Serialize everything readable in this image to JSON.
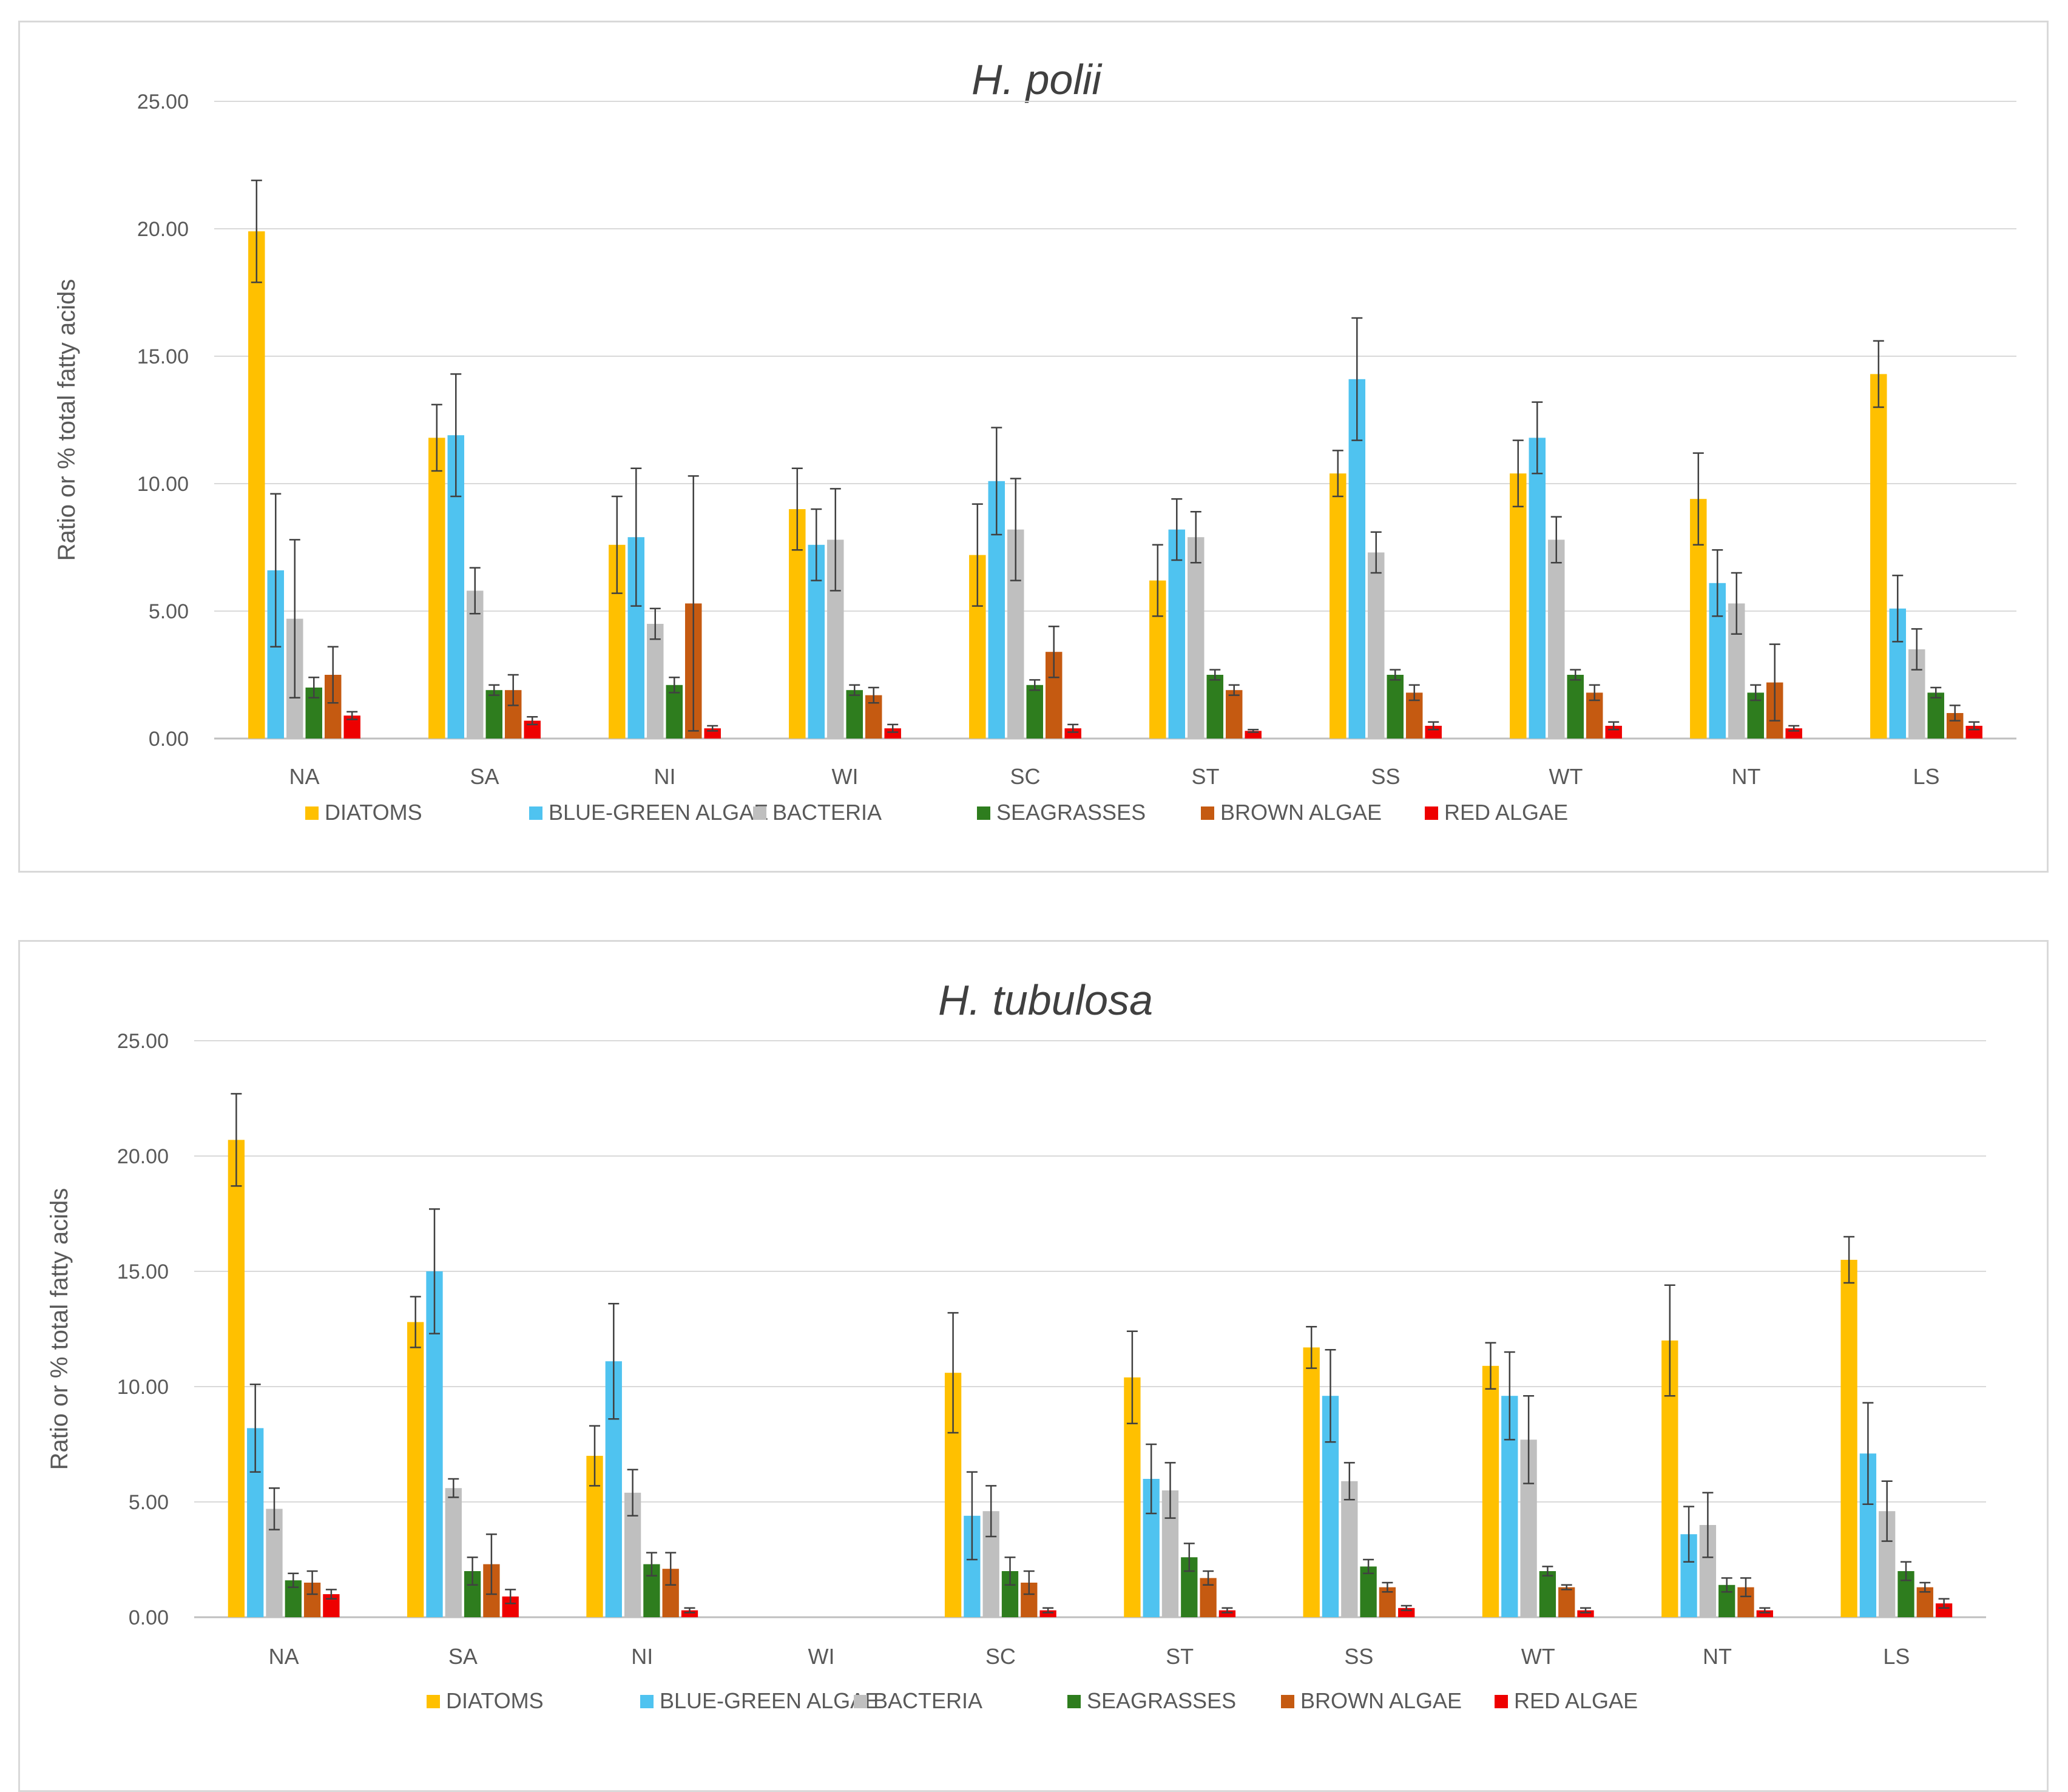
{
  "chart_data": [
    {
      "type": "bar",
      "title": "H. polii",
      "ylabel": "Ratio or % total fatty acids",
      "xlabel": "",
      "ylim": [
        0,
        25
      ],
      "yticks": [
        "0.00",
        "5.00",
        "10.00",
        "15.00",
        "20.00",
        "25.00"
      ],
      "grid": true,
      "legend_position": "bottom",
      "categories": [
        "NA",
        "SA",
        "NI",
        "WI",
        "SC",
        "ST",
        "SS",
        "WT",
        "NT",
        "LS"
      ],
      "series": [
        {
          "name": "DIATOMS",
          "color": "#FFC000",
          "values": [
            19.9,
            11.8,
            7.6,
            9.0,
            7.2,
            6.2,
            10.4,
            10.4,
            9.4,
            14.3
          ],
          "errors": [
            2.0,
            1.3,
            1.9,
            1.6,
            2.0,
            1.4,
            0.9,
            1.3,
            1.8,
            1.3
          ]
        },
        {
          "name": "BLUE-GREEN ALGAE",
          "color": "#4FC3F0",
          "values": [
            6.6,
            11.9,
            7.9,
            7.6,
            10.1,
            8.2,
            14.1,
            11.8,
            6.1,
            5.1
          ],
          "errors": [
            3.0,
            2.4,
            2.7,
            1.4,
            2.1,
            1.2,
            2.4,
            1.4,
            1.3,
            1.3
          ]
        },
        {
          "name": "BACTERIA",
          "color": "#BFBFBF",
          "values": [
            4.7,
            5.8,
            4.5,
            7.8,
            8.2,
            7.9,
            7.3,
            7.8,
            5.3,
            3.5
          ],
          "errors": [
            3.1,
            0.9,
            0.6,
            2.0,
            2.0,
            1.0,
            0.8,
            0.9,
            1.2,
            0.8
          ]
        },
        {
          "name": "SEAGRASSES",
          "color": "#2E7D1E",
          "values": [
            2.0,
            1.9,
            2.1,
            1.9,
            2.1,
            2.5,
            2.5,
            2.5,
            1.8,
            1.8
          ],
          "errors": [
            0.4,
            0.2,
            0.3,
            0.2,
            0.2,
            0.2,
            0.2,
            0.2,
            0.3,
            0.2
          ]
        },
        {
          "name": "BROWN ALGAE",
          "color": "#C55A11",
          "values": [
            2.5,
            1.9,
            5.3,
            1.7,
            3.4,
            1.9,
            1.8,
            1.8,
            2.2,
            1.0
          ],
          "errors": [
            1.1,
            0.6,
            5.0,
            0.3,
            1.0,
            0.2,
            0.3,
            0.3,
            1.5,
            0.3
          ]
        },
        {
          "name": "RED ALGAE",
          "color": "#EE0000",
          "values": [
            0.9,
            0.7,
            0.4,
            0.4,
            0.4,
            0.3,
            0.5,
            0.5,
            0.4,
            0.5
          ],
          "errors": [
            0.15,
            0.15,
            0.1,
            0.15,
            0.15,
            0.05,
            0.15,
            0.15,
            0.1,
            0.15
          ]
        }
      ]
    },
    {
      "type": "bar",
      "title": "H. tubulosa",
      "ylabel": "Ratio or % total fatty acids",
      "xlabel": "",
      "ylim": [
        0,
        25
      ],
      "yticks": [
        "0.00",
        "5.00",
        "10.00",
        "15.00",
        "20.00",
        "25.00"
      ],
      "grid": true,
      "legend_position": "bottom",
      "categories": [
        "NA",
        "SA",
        "NI",
        "WI",
        "SC",
        "ST",
        "SS",
        "WT",
        "NT",
        "LS"
      ],
      "series": [
        {
          "name": "DIATOMS",
          "color": "#FFC000",
          "values": [
            20.7,
            12.8,
            7.0,
            null,
            10.6,
            10.4,
            11.7,
            10.9,
            12.0,
            15.5
          ],
          "errors": [
            2.0,
            1.1,
            1.3,
            null,
            2.6,
            2.0,
            0.9,
            1.0,
            2.4,
            1.0
          ]
        },
        {
          "name": "BLUE-GREEN ALGAE",
          "color": "#4FC3F0",
          "values": [
            8.2,
            15.0,
            11.1,
            null,
            4.4,
            6.0,
            9.6,
            9.6,
            3.6,
            7.1
          ],
          "errors": [
            1.9,
            2.7,
            2.5,
            null,
            1.9,
            1.5,
            2.0,
            1.9,
            1.2,
            2.2
          ]
        },
        {
          "name": "BACTERIA",
          "color": "#BFBFBF",
          "values": [
            4.7,
            5.6,
            5.4,
            null,
            4.6,
            5.5,
            5.9,
            7.7,
            4.0,
            4.6
          ],
          "errors": [
            0.9,
            0.4,
            1.0,
            null,
            1.1,
            1.2,
            0.8,
            1.9,
            1.4,
            1.3
          ]
        },
        {
          "name": "SEAGRASSES",
          "color": "#2E7D1E",
          "values": [
            1.6,
            2.0,
            2.3,
            null,
            2.0,
            2.6,
            2.2,
            2.0,
            1.4,
            2.0
          ],
          "errors": [
            0.3,
            0.6,
            0.5,
            null,
            0.6,
            0.6,
            0.3,
            0.2,
            0.3,
            0.4
          ]
        },
        {
          "name": "BROWN ALGAE",
          "color": "#C55A11",
          "values": [
            1.5,
            2.3,
            2.1,
            null,
            1.5,
            1.7,
            1.3,
            1.3,
            1.3,
            1.3
          ],
          "errors": [
            0.5,
            1.3,
            0.7,
            null,
            0.5,
            0.3,
            0.2,
            0.1,
            0.4,
            0.2
          ]
        },
        {
          "name": "RED ALGAE",
          "color": "#EE0000",
          "values": [
            1.0,
            0.9,
            0.3,
            null,
            0.3,
            0.3,
            0.4,
            0.3,
            0.3,
            0.6
          ],
          "errors": [
            0.2,
            0.3,
            0.1,
            null,
            0.1,
            0.1,
            0.1,
            0.1,
            0.1,
            0.2
          ]
        }
      ]
    }
  ]
}
